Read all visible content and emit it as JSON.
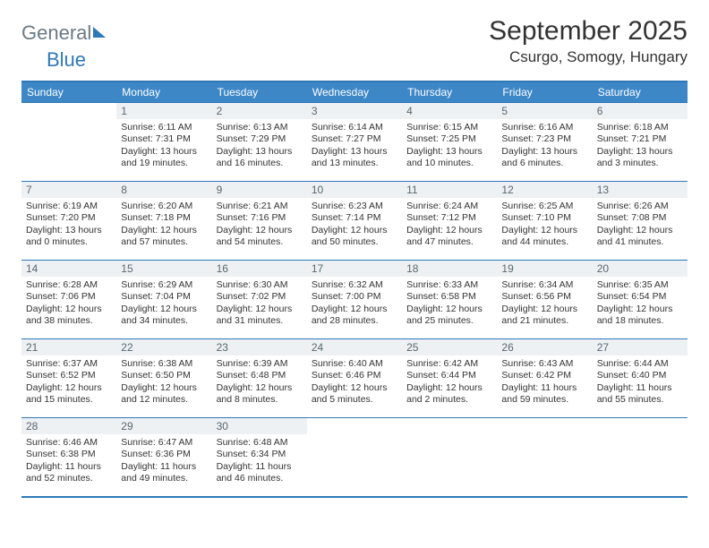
{
  "logo": {
    "word1": "General",
    "word2": "Blue"
  },
  "title": "September 2025",
  "location": "Csurgo, Somogy, Hungary",
  "weekday_header_bg": "#3d87c7",
  "border_color": "#2f78b8",
  "daynum_bg": "#eef1f3",
  "weekdays": [
    "Sunday",
    "Monday",
    "Tuesday",
    "Wednesday",
    "Thursday",
    "Friday",
    "Saturday"
  ],
  "weeks": [
    [
      {
        "day": "",
        "sunrise": "",
        "sunset": "",
        "daylight": ""
      },
      {
        "day": "1",
        "sunrise": "Sunrise: 6:11 AM",
        "sunset": "Sunset: 7:31 PM",
        "daylight": "Daylight: 13 hours and 19 minutes."
      },
      {
        "day": "2",
        "sunrise": "Sunrise: 6:13 AM",
        "sunset": "Sunset: 7:29 PM",
        "daylight": "Daylight: 13 hours and 16 minutes."
      },
      {
        "day": "3",
        "sunrise": "Sunrise: 6:14 AM",
        "sunset": "Sunset: 7:27 PM",
        "daylight": "Daylight: 13 hours and 13 minutes."
      },
      {
        "day": "4",
        "sunrise": "Sunrise: 6:15 AM",
        "sunset": "Sunset: 7:25 PM",
        "daylight": "Daylight: 13 hours and 10 minutes."
      },
      {
        "day": "5",
        "sunrise": "Sunrise: 6:16 AM",
        "sunset": "Sunset: 7:23 PM",
        "daylight": "Daylight: 13 hours and 6 minutes."
      },
      {
        "day": "6",
        "sunrise": "Sunrise: 6:18 AM",
        "sunset": "Sunset: 7:21 PM",
        "daylight": "Daylight: 13 hours and 3 minutes."
      }
    ],
    [
      {
        "day": "7",
        "sunrise": "Sunrise: 6:19 AM",
        "sunset": "Sunset: 7:20 PM",
        "daylight": "Daylight: 13 hours and 0 minutes."
      },
      {
        "day": "8",
        "sunrise": "Sunrise: 6:20 AM",
        "sunset": "Sunset: 7:18 PM",
        "daylight": "Daylight: 12 hours and 57 minutes."
      },
      {
        "day": "9",
        "sunrise": "Sunrise: 6:21 AM",
        "sunset": "Sunset: 7:16 PM",
        "daylight": "Daylight: 12 hours and 54 minutes."
      },
      {
        "day": "10",
        "sunrise": "Sunrise: 6:23 AM",
        "sunset": "Sunset: 7:14 PM",
        "daylight": "Daylight: 12 hours and 50 minutes."
      },
      {
        "day": "11",
        "sunrise": "Sunrise: 6:24 AM",
        "sunset": "Sunset: 7:12 PM",
        "daylight": "Daylight: 12 hours and 47 minutes."
      },
      {
        "day": "12",
        "sunrise": "Sunrise: 6:25 AM",
        "sunset": "Sunset: 7:10 PM",
        "daylight": "Daylight: 12 hours and 44 minutes."
      },
      {
        "day": "13",
        "sunrise": "Sunrise: 6:26 AM",
        "sunset": "Sunset: 7:08 PM",
        "daylight": "Daylight: 12 hours and 41 minutes."
      }
    ],
    [
      {
        "day": "14",
        "sunrise": "Sunrise: 6:28 AM",
        "sunset": "Sunset: 7:06 PM",
        "daylight": "Daylight: 12 hours and 38 minutes."
      },
      {
        "day": "15",
        "sunrise": "Sunrise: 6:29 AM",
        "sunset": "Sunset: 7:04 PM",
        "daylight": "Daylight: 12 hours and 34 minutes."
      },
      {
        "day": "16",
        "sunrise": "Sunrise: 6:30 AM",
        "sunset": "Sunset: 7:02 PM",
        "daylight": "Daylight: 12 hours and 31 minutes."
      },
      {
        "day": "17",
        "sunrise": "Sunrise: 6:32 AM",
        "sunset": "Sunset: 7:00 PM",
        "daylight": "Daylight: 12 hours and 28 minutes."
      },
      {
        "day": "18",
        "sunrise": "Sunrise: 6:33 AM",
        "sunset": "Sunset: 6:58 PM",
        "daylight": "Daylight: 12 hours and 25 minutes."
      },
      {
        "day": "19",
        "sunrise": "Sunrise: 6:34 AM",
        "sunset": "Sunset: 6:56 PM",
        "daylight": "Daylight: 12 hours and 21 minutes."
      },
      {
        "day": "20",
        "sunrise": "Sunrise: 6:35 AM",
        "sunset": "Sunset: 6:54 PM",
        "daylight": "Daylight: 12 hours and 18 minutes."
      }
    ],
    [
      {
        "day": "21",
        "sunrise": "Sunrise: 6:37 AM",
        "sunset": "Sunset: 6:52 PM",
        "daylight": "Daylight: 12 hours and 15 minutes."
      },
      {
        "day": "22",
        "sunrise": "Sunrise: 6:38 AM",
        "sunset": "Sunset: 6:50 PM",
        "daylight": "Daylight: 12 hours and 12 minutes."
      },
      {
        "day": "23",
        "sunrise": "Sunrise: 6:39 AM",
        "sunset": "Sunset: 6:48 PM",
        "daylight": "Daylight: 12 hours and 8 minutes."
      },
      {
        "day": "24",
        "sunrise": "Sunrise: 6:40 AM",
        "sunset": "Sunset: 6:46 PM",
        "daylight": "Daylight: 12 hours and 5 minutes."
      },
      {
        "day": "25",
        "sunrise": "Sunrise: 6:42 AM",
        "sunset": "Sunset: 6:44 PM",
        "daylight": "Daylight: 12 hours and 2 minutes."
      },
      {
        "day": "26",
        "sunrise": "Sunrise: 6:43 AM",
        "sunset": "Sunset: 6:42 PM",
        "daylight": "Daylight: 11 hours and 59 minutes."
      },
      {
        "day": "27",
        "sunrise": "Sunrise: 6:44 AM",
        "sunset": "Sunset: 6:40 PM",
        "daylight": "Daylight: 11 hours and 55 minutes."
      }
    ],
    [
      {
        "day": "28",
        "sunrise": "Sunrise: 6:46 AM",
        "sunset": "Sunset: 6:38 PM",
        "daylight": "Daylight: 11 hours and 52 minutes."
      },
      {
        "day": "29",
        "sunrise": "Sunrise: 6:47 AM",
        "sunset": "Sunset: 6:36 PM",
        "daylight": "Daylight: 11 hours and 49 minutes."
      },
      {
        "day": "30",
        "sunrise": "Sunrise: 6:48 AM",
        "sunset": "Sunset: 6:34 PM",
        "daylight": "Daylight: 11 hours and 46 minutes."
      },
      {
        "day": "",
        "sunrise": "",
        "sunset": "",
        "daylight": ""
      },
      {
        "day": "",
        "sunrise": "",
        "sunset": "",
        "daylight": ""
      },
      {
        "day": "",
        "sunrise": "",
        "sunset": "",
        "daylight": ""
      },
      {
        "day": "",
        "sunrise": "",
        "sunset": "",
        "daylight": ""
      }
    ]
  ]
}
